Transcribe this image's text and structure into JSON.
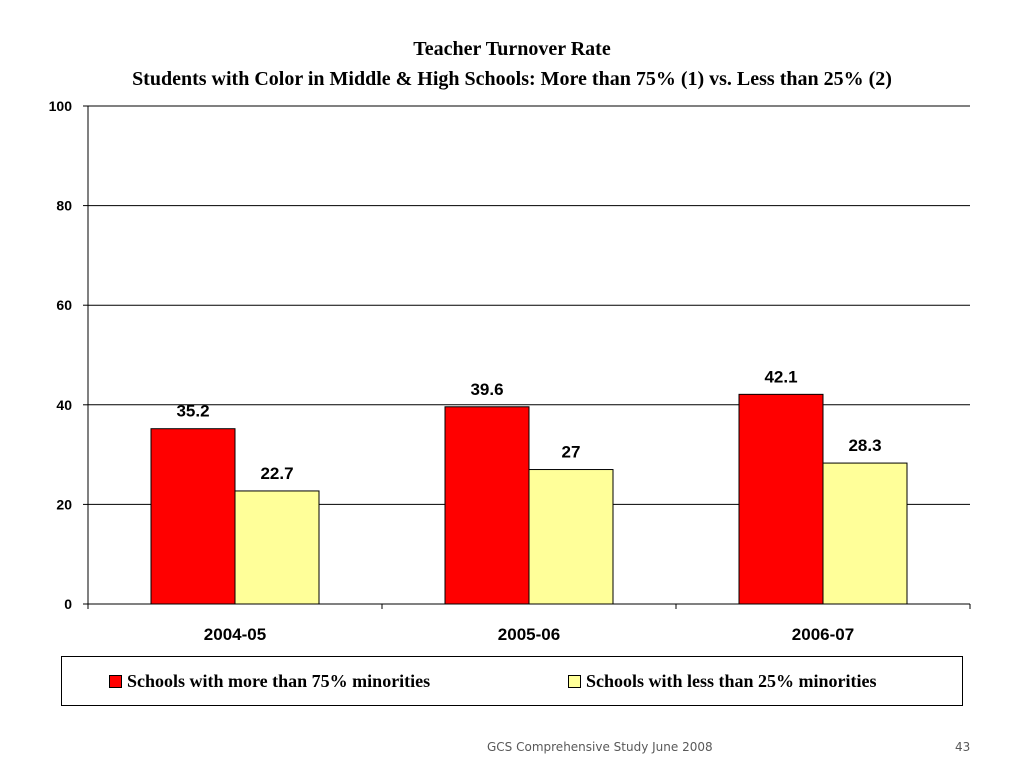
{
  "chart_data": {
    "type": "bar",
    "title": "Teacher Turnover Rate",
    "subtitle": "Students with Color in Middle & High Schools: More than 75% (1) vs. Less than 25% (2)",
    "categories": [
      "2004-05",
      "2005-06",
      "2006-07"
    ],
    "series": [
      {
        "name": "Schools with more than 75% minorities",
        "values": [
          35.2,
          39.6,
          42.1
        ],
        "labels": [
          "35.2",
          "39.6",
          "42.1"
        ],
        "color": "#ff0000"
      },
      {
        "name": "Schools with less than 25% minorities",
        "values": [
          22.7,
          27,
          28.3
        ],
        "labels": [
          "22.7",
          "27",
          "28.3"
        ],
        "color": "#ffff99"
      }
    ],
    "ylim": [
      0,
      100
    ],
    "yticks": [
      "0",
      "20",
      "40",
      "60",
      "80",
      "100"
    ],
    "grid": true,
    "legend": "bottom"
  },
  "footer": {
    "text": "GCS Comprehensive Study June 2008",
    "page_number": "43"
  }
}
